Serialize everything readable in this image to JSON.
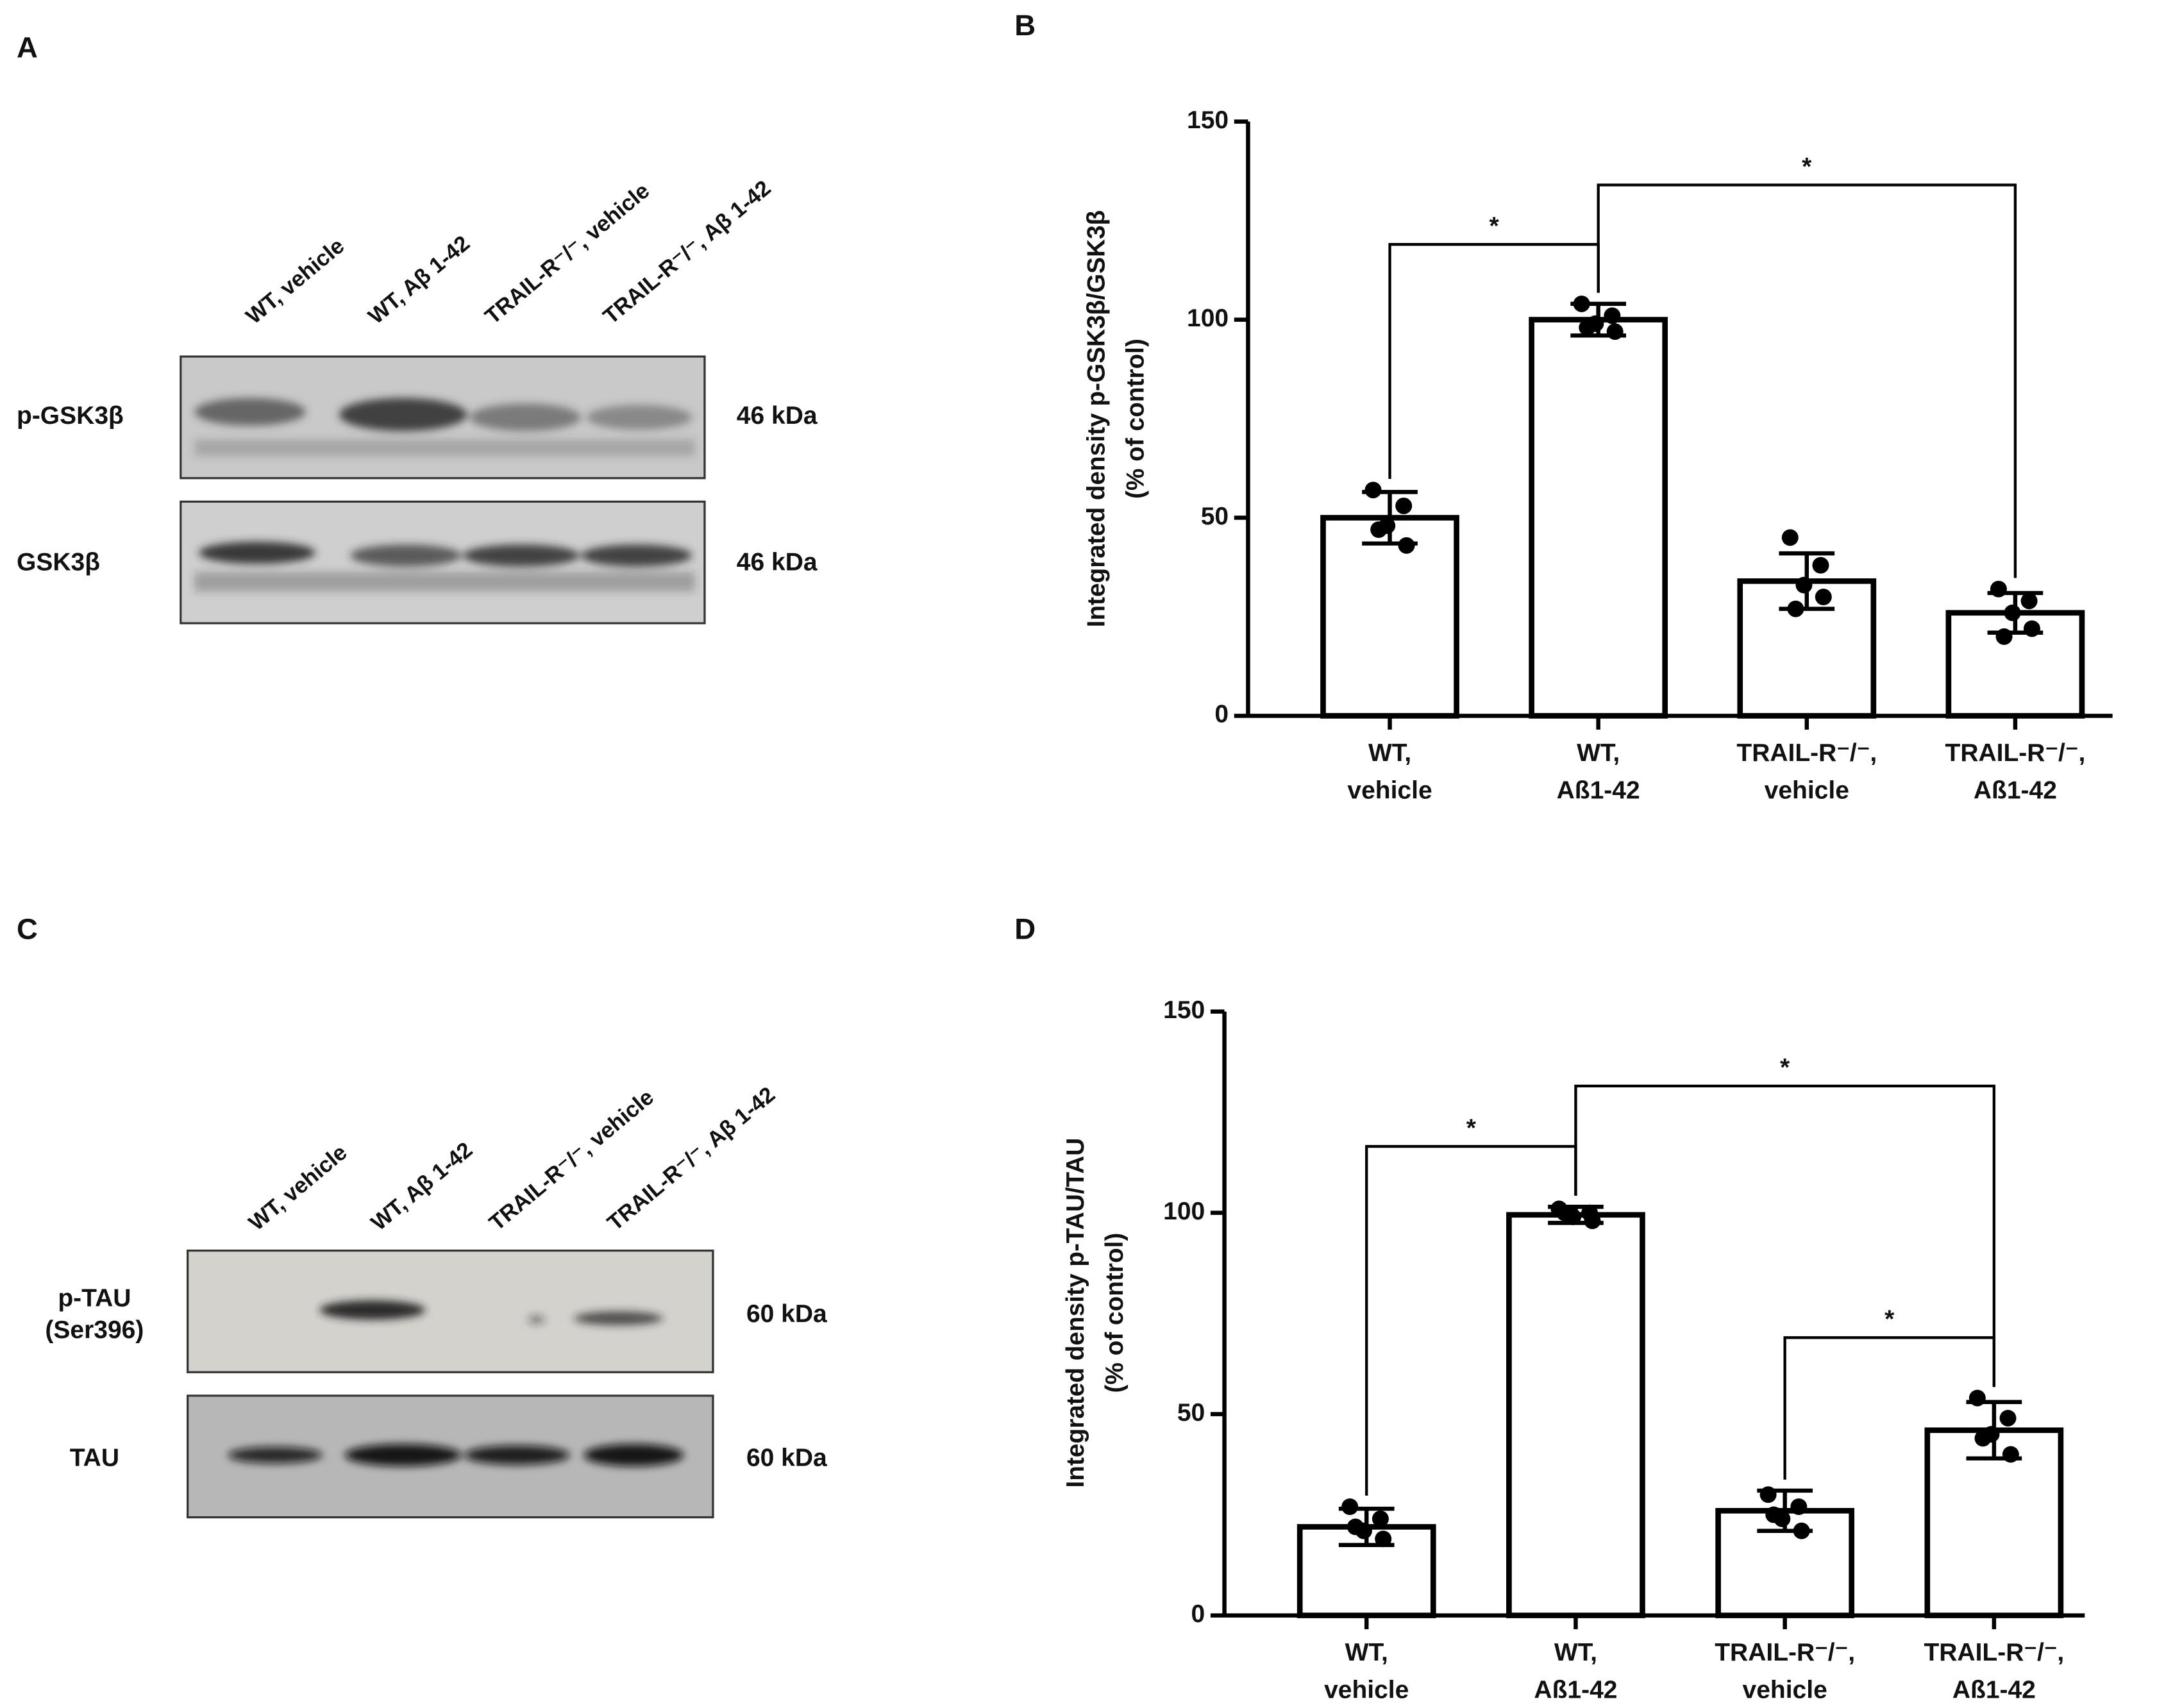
{
  "panels": [
    "A",
    "B",
    "C",
    "D"
  ],
  "blots": [
    {
      "lanes": [
        "WT, vehicle",
        "WT, Aβ 1-42",
        "TRAIL-R⁻/⁻, vehicle",
        "TRAIL-R⁻/⁻, Aβ 1-42"
      ],
      "rows": [
        {
          "label": [
            "p-GSK3β"
          ],
          "size": "46 kDa"
        },
        {
          "label": [
            "GSK3β"
          ],
          "size": "46 kDa"
        }
      ]
    },
    {
      "lanes": [
        "WT, vehicle",
        "WT, Aβ 1-42",
        "TRAIL-R⁻/⁻, vehicle",
        "TRAIL-R⁻/⁻, Aβ 1-42"
      ],
      "rows": [
        {
          "label": [
            "p-TAU",
            "(Ser396)"
          ],
          "size": "60 kDa"
        },
        {
          "label": [
            "TAU"
          ],
          "size": "60 kDa"
        }
      ]
    }
  ],
  "chart_data": [
    {
      "type": "bar",
      "ylabel": [
        "Integrated density p-GSK3β/GSK3β",
        "(% of control)"
      ],
      "categories": [
        [
          "WT,",
          "vehicle"
        ],
        [
          "WT,",
          "Aß1-42"
        ],
        [
          "TRAIL-R⁻/⁻,",
          "vehicle"
        ],
        [
          "TRAIL-R⁻/⁻,",
          "Aß1-42"
        ]
      ],
      "values": [
        50,
        100,
        34,
        26
      ],
      "errors": [
        6.5,
        4,
        7,
        5
      ],
      "points": [
        [
          57,
          53,
          48,
          43,
          47
        ],
        [
          104,
          101,
          99,
          97,
          98
        ],
        [
          45,
          38,
          33,
          30,
          27
        ],
        [
          32,
          29,
          26,
          22,
          20
        ]
      ],
      "color": "#ffffff",
      "ylim": [
        0,
        150
      ],
      "yticks": [
        0,
        50,
        100,
        150
      ],
      "annotations": [
        {
          "text": "*",
          "from": 0,
          "to": 1
        },
        {
          "text": "*",
          "from": 1,
          "to": 3
        }
      ]
    },
    {
      "type": "bar",
      "ylabel": [
        "Integrated density p-TAU/TAU",
        "(% of control)"
      ],
      "categories": [
        [
          "WT,",
          "vehicle"
        ],
        [
          "WT,",
          "Aß1-42"
        ],
        [
          "TRAIL-R⁻/⁻,",
          "vehicle"
        ],
        [
          "TRAIL-R⁻/⁻,",
          "Aß1-42"
        ]
      ],
      "values": [
        22,
        99.5,
        26,
        46
      ],
      "errors": [
        4.5,
        2,
        5,
        7
      ],
      "points": [
        [
          27,
          24,
          21,
          19,
          22
        ],
        [
          101,
          100,
          99,
          98,
          100
        ],
        [
          30,
          27,
          24,
          21,
          25
        ],
        [
          54,
          49,
          45,
          40,
          44
        ]
      ],
      "color": "#ffffff",
      "ylim": [
        0,
        150
      ],
      "yticks": [
        0,
        50,
        100,
        150
      ],
      "annotations": [
        {
          "text": "*",
          "from": 2,
          "to": 3
        },
        {
          "text": "*",
          "from": 0,
          "to": 1
        },
        {
          "text": "*",
          "from": 1,
          "to": 3
        }
      ]
    }
  ]
}
